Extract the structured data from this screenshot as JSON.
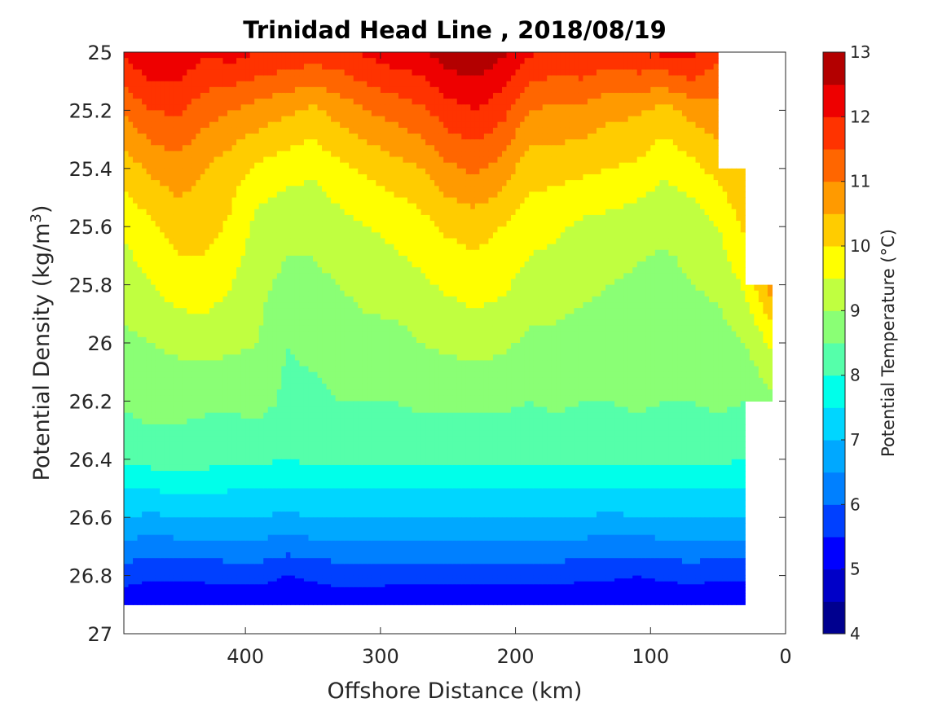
{
  "chart_data": {
    "type": "heatmap",
    "subtype": "filled contour",
    "title": "Trinidad Head Line , 2018/08/19",
    "xlabel": "Offshore Distance (km)",
    "ylabel": "Potential Density (kg/m",
    "ylabel_superscript": "3",
    "ylabel_close": ")",
    "xlim": [
      490,
      0
    ],
    "x_reversed": true,
    "ylim": [
      25,
      27
    ],
    "y_reversed": true,
    "xticks": [
      400,
      300,
      200,
      100,
      0
    ],
    "xtick_labels": [
      "400",
      "300",
      "200",
      "100",
      "0"
    ],
    "yticks": [
      25,
      25.2,
      25.4,
      25.6,
      25.8,
      26,
      26.2,
      26.4,
      26.6,
      26.8,
      27
    ],
    "ytick_labels": [
      "25",
      "25.2",
      "25.4",
      "25.6",
      "25.8",
      "26",
      "26.2",
      "26.4",
      "26.6",
      "26.8",
      "27"
    ],
    "colormap": "jet",
    "colorbar": {
      "label": "Potential Temperature (°C)",
      "range": [
        4,
        13
      ],
      "levels": [
        4,
        4.5,
        5,
        5.5,
        6,
        6.5,
        7,
        7.5,
        8,
        8.5,
        9,
        9.5,
        10,
        10.5,
        11,
        11.5,
        12,
        12.5,
        13
      ],
      "tick_values": [
        4,
        5,
        6,
        7,
        8,
        9,
        10,
        11,
        12,
        13
      ],
      "tick_labels": [
        "4",
        "5",
        "6",
        "7",
        "8",
        "9",
        "10",
        "11",
        "12",
        "13"
      ],
      "colors": [
        "#00008f",
        "#0000c8",
        "#0000ff",
        "#0040ff",
        "#0080ff",
        "#00a8ff",
        "#00d6ff",
        "#00ffea",
        "#55ffaa",
        "#8aff75",
        "#c0ff40",
        "#ffff00",
        "#ffcc00",
        "#ff9a00",
        "#ff6600",
        "#ff3300",
        "#ee0000",
        "#b30000"
      ]
    },
    "x": [
      490,
      470,
      450,
      430,
      410,
      390,
      370,
      350,
      330,
      310,
      290,
      270,
      250,
      230,
      210,
      190,
      170,
      150,
      130,
      110,
      90,
      70,
      50,
      30,
      10
    ],
    "isopycnals_temperature": [
      {
        "density": 25.0,
        "temperature": [
          12.1,
          12.5,
          12.4,
          12.1,
          12.2,
          12.0,
          11.9,
          11.8,
          11.9,
          12.1,
          12.3,
          12.4,
          12.8,
          12.9,
          12.6,
          12.1,
          11.9,
          12.0,
          11.8,
          12.0,
          12.1,
          12.2,
          11.6,
          null,
          null
        ]
      },
      {
        "density": 25.2,
        "temperature": [
          11.1,
          11.5,
          11.6,
          11.2,
          11.0,
          10.8,
          10.6,
          10.4,
          10.7,
          11.0,
          11.2,
          11.4,
          11.8,
          12.0,
          11.7,
          11.0,
          10.9,
          10.9,
          10.6,
          10.6,
          10.3,
          10.7,
          10.8,
          null,
          null
        ]
      },
      {
        "density": 25.4,
        "temperature": [
          10.2,
          10.6,
          10.8,
          10.5,
          10.2,
          9.9,
          9.7,
          9.6,
          9.9,
          10.1,
          10.3,
          10.5,
          10.9,
          11.1,
          10.8,
          10.2,
          10.2,
          10.1,
          10.0,
          9.9,
          9.6,
          9.8,
          10.2,
          10.5,
          null
        ]
      },
      {
        "density": 25.6,
        "temperature": [
          9.6,
          9.9,
          10.2,
          10.2,
          9.9,
          9.3,
          9.1,
          9.1,
          9.3,
          9.5,
          9.6,
          9.8,
          10.1,
          10.2,
          10.0,
          9.7,
          9.6,
          9.4,
          9.3,
          9.2,
          9.1,
          9.2,
          9.5,
          10.1,
          null
        ]
      },
      {
        "density": 25.8,
        "temperature": [
          9.2,
          9.5,
          9.8,
          9.8,
          9.5,
          9.1,
          8.9,
          8.9,
          9.0,
          9.2,
          9.3,
          9.4,
          9.6,
          9.7,
          9.6,
          9.3,
          9.2,
          9.1,
          9.0,
          8.9,
          8.8,
          9.0,
          9.1,
          9.6,
          10.8
        ]
      },
      {
        "density": 26.0,
        "temperature": [
          8.9,
          9.0,
          9.1,
          9.2,
          9.1,
          9.0,
          8.5,
          8.6,
          8.7,
          8.8,
          8.8,
          9.0,
          9.1,
          9.2,
          9.1,
          8.9,
          8.9,
          8.8,
          8.8,
          8.8,
          8.7,
          8.7,
          8.8,
          9.0,
          9.6
        ]
      },
      {
        "density": 26.2,
        "temperature": [
          8.6,
          8.7,
          8.7,
          8.6,
          8.6,
          8.7,
          8.4,
          8.4,
          8.5,
          8.5,
          8.5,
          8.6,
          8.6,
          8.6,
          8.6,
          8.5,
          8.6,
          8.5,
          8.5,
          8.6,
          8.5,
          8.5,
          8.6,
          8.5,
          8.9
        ]
      },
      {
        "density": 26.4,
        "temperature": [
          8.1,
          8.2,
          8.2,
          8.2,
          8.1,
          8.1,
          8.0,
          8.1,
          8.1,
          8.1,
          8.1,
          8.1,
          8.1,
          8.1,
          8.1,
          8.1,
          8.1,
          8.1,
          8.1,
          8.1,
          8.1,
          8.1,
          8.1,
          8.0,
          null
        ]
      },
      {
        "density": 26.6,
        "temperature": [
          7.0,
          6.9,
          7.0,
          7.0,
          7.0,
          7.0,
          6.9,
          7.0,
          7.0,
          7.0,
          7.0,
          7.0,
          7.0,
          7.0,
          7.0,
          7.0,
          7.0,
          7.0,
          6.9,
          7.0,
          7.0,
          7.0,
          7.0,
          7.0,
          null
        ]
      },
      {
        "density": 26.8,
        "temperature": [
          5.7,
          5.6,
          5.6,
          5.6,
          5.7,
          5.7,
          5.5,
          5.6,
          5.7,
          5.7,
          5.7,
          5.7,
          5.7,
          5.7,
          5.7,
          5.7,
          5.7,
          5.6,
          5.6,
          5.5,
          5.6,
          5.7,
          5.6,
          5.6,
          null
        ]
      },
      {
        "density": 26.9,
        "temperature": [
          5.2,
          5.0,
          5.1,
          5.2,
          5.1,
          5.1,
          5.0,
          5.1,
          5.2,
          5.2,
          5.1,
          5.1,
          5.1,
          5.1,
          5.1,
          5.1,
          5.1,
          5.1,
          5.0,
          5.1,
          5.1,
          5.0,
          5.1,
          5.2,
          null
        ]
      }
    ]
  }
}
